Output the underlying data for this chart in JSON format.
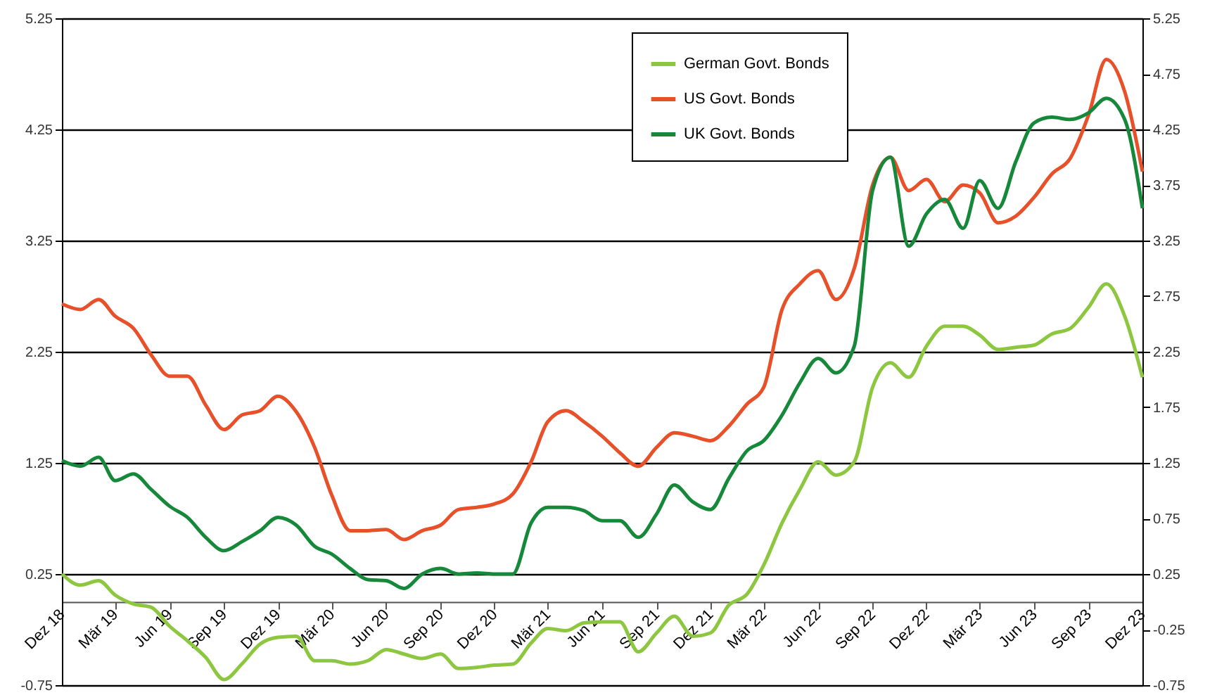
{
  "chart_data": {
    "type": "line",
    "x": [
      "2018-12",
      "2019-01",
      "2019-02",
      "2019-03",
      "2019-04",
      "2019-05",
      "2019-06",
      "2019-07",
      "2019-08",
      "2019-09",
      "2019-10",
      "2019-11",
      "2019-12",
      "2020-01",
      "2020-02",
      "2020-03",
      "2020-04",
      "2020-05",
      "2020-06",
      "2020-07",
      "2020-08",
      "2020-09",
      "2020-10",
      "2020-11",
      "2020-12",
      "2021-01",
      "2021-02",
      "2021-03",
      "2021-04",
      "2021-05",
      "2021-06",
      "2021-07",
      "2021-08",
      "2021-09",
      "2021-10",
      "2021-11",
      "2021-12",
      "2022-01",
      "2022-02",
      "2022-03",
      "2022-04",
      "2022-05",
      "2022-06",
      "2022-07",
      "2022-08",
      "2022-09",
      "2022-10",
      "2022-11",
      "2022-12",
      "2023-01",
      "2023-02",
      "2023-03",
      "2023-04",
      "2023-05",
      "2023-06",
      "2023-07",
      "2023-08",
      "2023-09",
      "2023-10",
      "2023-11",
      "2023-12"
    ],
    "series": [
      {
        "name": "German Govt. Bonds",
        "color": "#8dc63f",
        "values": [
          0.25,
          0.15,
          0.19,
          0.06,
          -0.02,
          -0.05,
          -0.22,
          -0.35,
          -0.5,
          -0.7,
          -0.56,
          -0.38,
          -0.32,
          -0.31,
          -0.53,
          -0.53,
          -0.56,
          -0.53,
          -0.43,
          -0.47,
          -0.51,
          -0.47,
          -0.6,
          -0.59,
          -0.57,
          -0.56,
          -0.37,
          -0.24,
          -0.26,
          -0.19,
          -0.18,
          -0.18,
          -0.45,
          -0.28,
          -0.13,
          -0.31,
          -0.28,
          -0.03,
          0.07,
          0.33,
          0.71,
          1.01,
          1.26,
          1.14,
          1.26,
          1.93,
          2.15,
          2.02,
          2.3,
          2.48,
          2.48,
          2.4,
          2.27,
          2.29,
          2.31,
          2.41,
          2.46,
          2.65,
          2.86,
          2.57,
          2.02
        ]
      },
      {
        "name": "US Govt. Bonds",
        "color": "#e8502a",
        "values": [
          2.68,
          2.63,
          2.72,
          2.57,
          2.46,
          2.22,
          2.03,
          2.03,
          1.77,
          1.55,
          1.68,
          1.72,
          1.85,
          1.71,
          1.39,
          0.96,
          0.64,
          0.64,
          0.65,
          0.56,
          0.64,
          0.69,
          0.83,
          0.85,
          0.88,
          0.97,
          1.26,
          1.62,
          1.72,
          1.62,
          1.49,
          1.34,
          1.22,
          1.39,
          1.52,
          1.49,
          1.45,
          1.58,
          1.78,
          1.93,
          2.63,
          2.86,
          2.98,
          2.72,
          3.0,
          3.75,
          4.0,
          3.7,
          3.8,
          3.6,
          3.75,
          3.68,
          3.41,
          3.47,
          3.64,
          3.85,
          3.99,
          4.38,
          4.88,
          4.59,
          3.87
        ]
      },
      {
        "name": "UK Govt. Bonds",
        "color": "#15883a",
        "values": [
          1.27,
          1.22,
          1.3,
          1.09,
          1.15,
          1.01,
          0.86,
          0.76,
          0.58,
          0.46,
          0.54,
          0.64,
          0.76,
          0.69,
          0.5,
          0.43,
          0.3,
          0.2,
          0.19,
          0.12,
          0.25,
          0.3,
          0.25,
          0.26,
          0.25,
          0.25,
          0.71,
          0.85,
          0.85,
          0.82,
          0.73,
          0.73,
          0.58,
          0.79,
          1.05,
          0.9,
          0.83,
          1.11,
          1.36,
          1.45,
          1.68,
          1.97,
          2.19,
          2.06,
          2.3,
          3.7,
          4.0,
          3.2,
          3.49,
          3.62,
          3.36,
          3.79,
          3.54,
          3.96,
          4.31,
          4.36,
          4.34,
          4.4,
          4.53,
          4.34,
          3.54
        ]
      }
    ],
    "xlim": [
      "2018-12",
      "2023-12"
    ],
    "xticks": [
      {
        "value": "2018-12",
        "label": "Dez 18"
      },
      {
        "value": "2019-03",
        "label": "Mär 19"
      },
      {
        "value": "2019-06",
        "label": "Jun 19"
      },
      {
        "value": "2019-09",
        "label": "Sep 19"
      },
      {
        "value": "2019-12",
        "label": "Dez 19"
      },
      {
        "value": "2020-03",
        "label": "Mär 20"
      },
      {
        "value": "2020-06",
        "label": "Jun 20"
      },
      {
        "value": "2020-09",
        "label": "Sep 20"
      },
      {
        "value": "2020-12",
        "label": "Dez 20"
      },
      {
        "value": "2021-03",
        "label": "Mär 21"
      },
      {
        "value": "2021-06",
        "label": "Jun 21"
      },
      {
        "value": "2021-09",
        "label": "Sep 21"
      },
      {
        "value": "2021-12",
        "label": "Dez 21"
      },
      {
        "value": "2022-03",
        "label": "Mär 22"
      },
      {
        "value": "2022-06",
        "label": "Jun 22"
      },
      {
        "value": "2022-09",
        "label": "Sep 22"
      },
      {
        "value": "2022-12",
        "label": "Dez 22"
      },
      {
        "value": "2023-03",
        "label": "Mär 23"
      },
      {
        "value": "2023-06",
        "label": "Jun 23"
      },
      {
        "value": "2023-09",
        "label": "Sep 23"
      },
      {
        "value": "2023-12",
        "label": "Dez 23"
      }
    ],
    "ylim": [
      -0.75,
      5.25
    ],
    "yticks": [
      -0.75,
      0.25,
      1.25,
      2.25,
      3.25,
      4.25,
      5.25
    ],
    "y2lim": [
      -0.75,
      5.25
    ],
    "y2ticks": [
      -0.75,
      -0.25,
      0.25,
      0.75,
      1.25,
      1.75,
      2.25,
      2.75,
      3.25,
      3.75,
      4.25,
      4.75,
      5.25
    ],
    "grid": "y",
    "legend": "top right",
    "marker": "none",
    "line_style": "solid"
  }
}
